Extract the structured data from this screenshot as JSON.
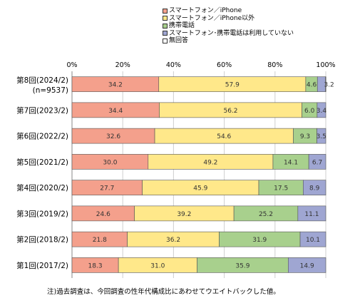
{
  "chart_data": {
    "type": "bar",
    "orientation": "horizontal",
    "stacked": true,
    "categories": [
      "第8回(2024/2)",
      "第7回(2023/2)",
      "第6回(2022/2)",
      "第5回(2021/2)",
      "第4回(2020/2)",
      "第3回(2019/2)",
      "第2回(2018/2)",
      "第1回(2017/2)"
    ],
    "category_sublabels": [
      "(n=9537)",
      "",
      "",
      "",
      "",
      "",
      "",
      ""
    ],
    "series": [
      {
        "name": "スマートフォン／iPhone",
        "color": "#f4a08c",
        "values": [
          34.2,
          34.4,
          32.6,
          30.0,
          27.7,
          24.6,
          21.8,
          18.3
        ],
        "labels": [
          "34.2",
          "34.4",
          "32.6",
          "30.0",
          "27.7",
          "24.6",
          "21.8",
          "18.3"
        ]
      },
      {
        "name": "スマートフォン／iPhone以外",
        "color": "#ffe88a",
        "values": [
          57.9,
          56.2,
          54.6,
          49.2,
          45.9,
          39.2,
          36.2,
          31.0
        ],
        "labels": [
          "57.9",
          "56.2",
          "54.6",
          "49.2",
          "45.9",
          "39.2",
          "36.2",
          "31.0"
        ]
      },
      {
        "name": "携帯電話",
        "color": "#a8d08d",
        "values": [
          4.6,
          6.0,
          9.3,
          14.1,
          17.5,
          25.2,
          31.9,
          35.9
        ],
        "labels": [
          "4.6",
          "6.0",
          "9.3",
          "14.1",
          "17.5",
          "25.2",
          "31.9",
          "35.9"
        ]
      },
      {
        "name": "スマートフォン･携帯電話は利用していない",
        "color": "#9fa6d2",
        "values": [
          3.2,
          3.4,
          3.5,
          6.7,
          8.9,
          11.1,
          10.1,
          14.9
        ],
        "labels": [
          "3.2",
          "3.4",
          "3.5",
          "6.7",
          "8.9",
          "11.1",
          "10.1",
          "14.9"
        ]
      },
      {
        "name": "無回答",
        "color": "#ffffff",
        "values": [
          0.1,
          0.0,
          0.0,
          0.0,
          0.0,
          0.0,
          0.0,
          0.0
        ],
        "labels": [
          "",
          "",
          "",
          "",
          "",
          "",
          "",
          ""
        ]
      }
    ],
    "xlim": [
      0,
      100
    ],
    "x_ticks": [
      "0%",
      "20%",
      "40%",
      "60%",
      "80%",
      "100%"
    ],
    "legend_position": "top-right",
    "grid": true
  },
  "note": "注)過去調査は、今回調査の性年代構成比にあわせてウエイトバックした値。"
}
